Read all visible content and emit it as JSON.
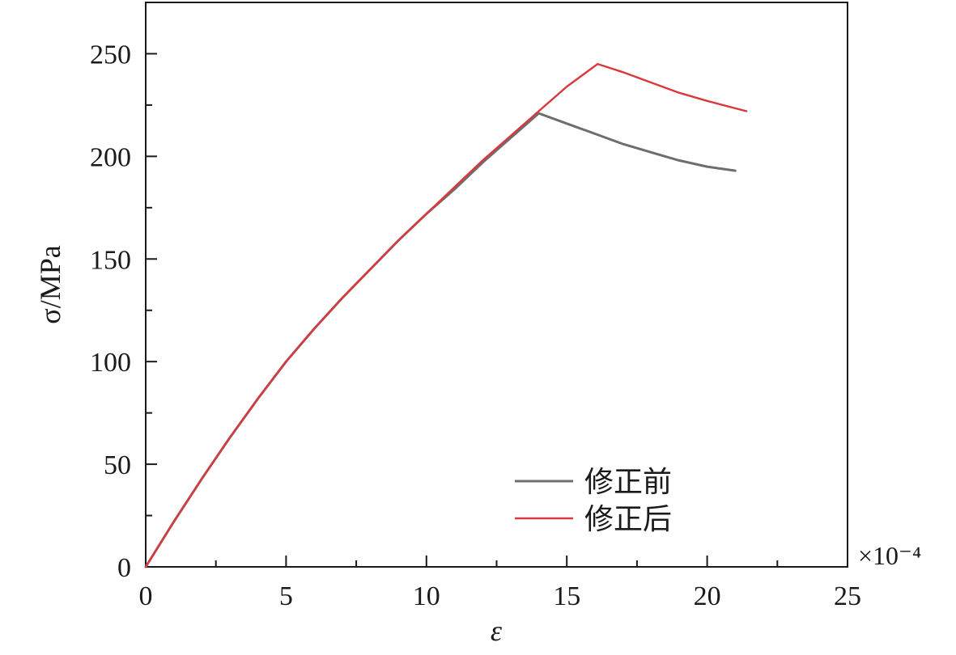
{
  "chart_data": {
    "type": "line",
    "title": "",
    "xlabel": "ε",
    "ylabel": "σ/MPa",
    "x_multiplier_label": "×10⁻⁴",
    "xlim": [
      0,
      25
    ],
    "ylim": [
      0,
      275
    ],
    "xticks": [
      0,
      5,
      10,
      15,
      20,
      25
    ],
    "yticks": [
      0,
      50,
      100,
      150,
      200,
      250
    ],
    "x_minor_step": 2.5,
    "y_minor_step": 25,
    "grid": false,
    "legend_position": "bottom-right",
    "series": [
      {
        "name": "修正前",
        "color": "#6e6e6e",
        "x": [
          0,
          1,
          2,
          3,
          4,
          5,
          6,
          7,
          8,
          9,
          10,
          11,
          12,
          13,
          14,
          15,
          16,
          17,
          18,
          19,
          20,
          21
        ],
        "y": [
          0,
          22,
          43,
          63,
          82,
          100,
          116,
          131,
          145,
          159,
          172,
          184,
          197,
          209,
          221,
          216,
          211,
          206,
          202,
          198,
          195,
          193
        ]
      },
      {
        "name": "修正后",
        "color": "#d9383d",
        "x": [
          0,
          1,
          2,
          3,
          4,
          5,
          6,
          7,
          8,
          9,
          10,
          11,
          12,
          13,
          14,
          15,
          16.1,
          17,
          18,
          19,
          20,
          21.4
        ],
        "y": [
          0,
          22,
          43,
          63,
          82,
          100,
          116,
          131,
          145,
          159,
          172,
          185,
          198,
          210,
          222,
          234,
          245,
          241,
          236,
          231,
          227,
          222
        ]
      }
    ]
  }
}
